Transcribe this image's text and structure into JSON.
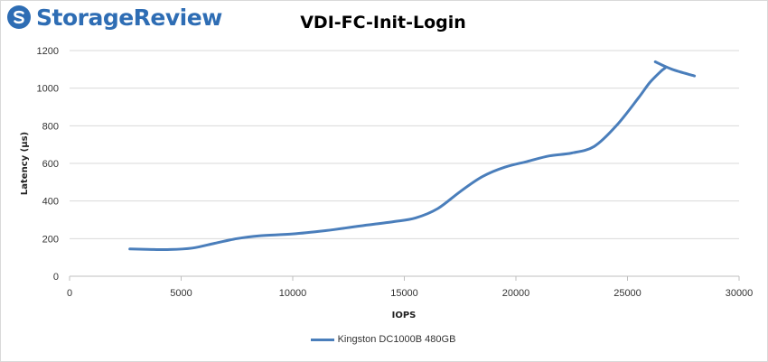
{
  "brand": {
    "name": "StorageReview",
    "color": "#2e6db4"
  },
  "chart_data": {
    "type": "line",
    "title": "VDI-FC-Init-Login",
    "xlabel": "IOPS",
    "ylabel": "Latency (µs)",
    "xlim": [
      0,
      30000
    ],
    "ylim": [
      0,
      1200
    ],
    "xticks": [
      0,
      5000,
      10000,
      15000,
      20000,
      25000,
      30000
    ],
    "yticks": [
      0,
      200,
      400,
      600,
      800,
      1000,
      1200
    ],
    "grid": "horizontal",
    "legend_position": "bottom",
    "series": [
      {
        "name": "Kingston DC1000B 480GB",
        "color": "#4a7ebb",
        "x": [
          2700,
          3500,
          4500,
          5500,
          6500,
          7500,
          8500,
          10000,
          11500,
          13000,
          14500,
          15500,
          16500,
          17500,
          18500,
          19500,
          20500,
          21500,
          22500,
          23500,
          24500,
          25500,
          26000,
          26500,
          26700,
          26600,
          26250,
          27000,
          28000
        ],
        "y": [
          145,
          143,
          142,
          150,
          175,
          200,
          215,
          225,
          243,
          267,
          290,
          310,
          360,
          450,
          530,
          580,
          610,
          640,
          655,
          690,
          800,
          950,
          1030,
          1090,
          1110,
          1120,
          1140,
          1100,
          1065
        ]
      }
    ]
  }
}
